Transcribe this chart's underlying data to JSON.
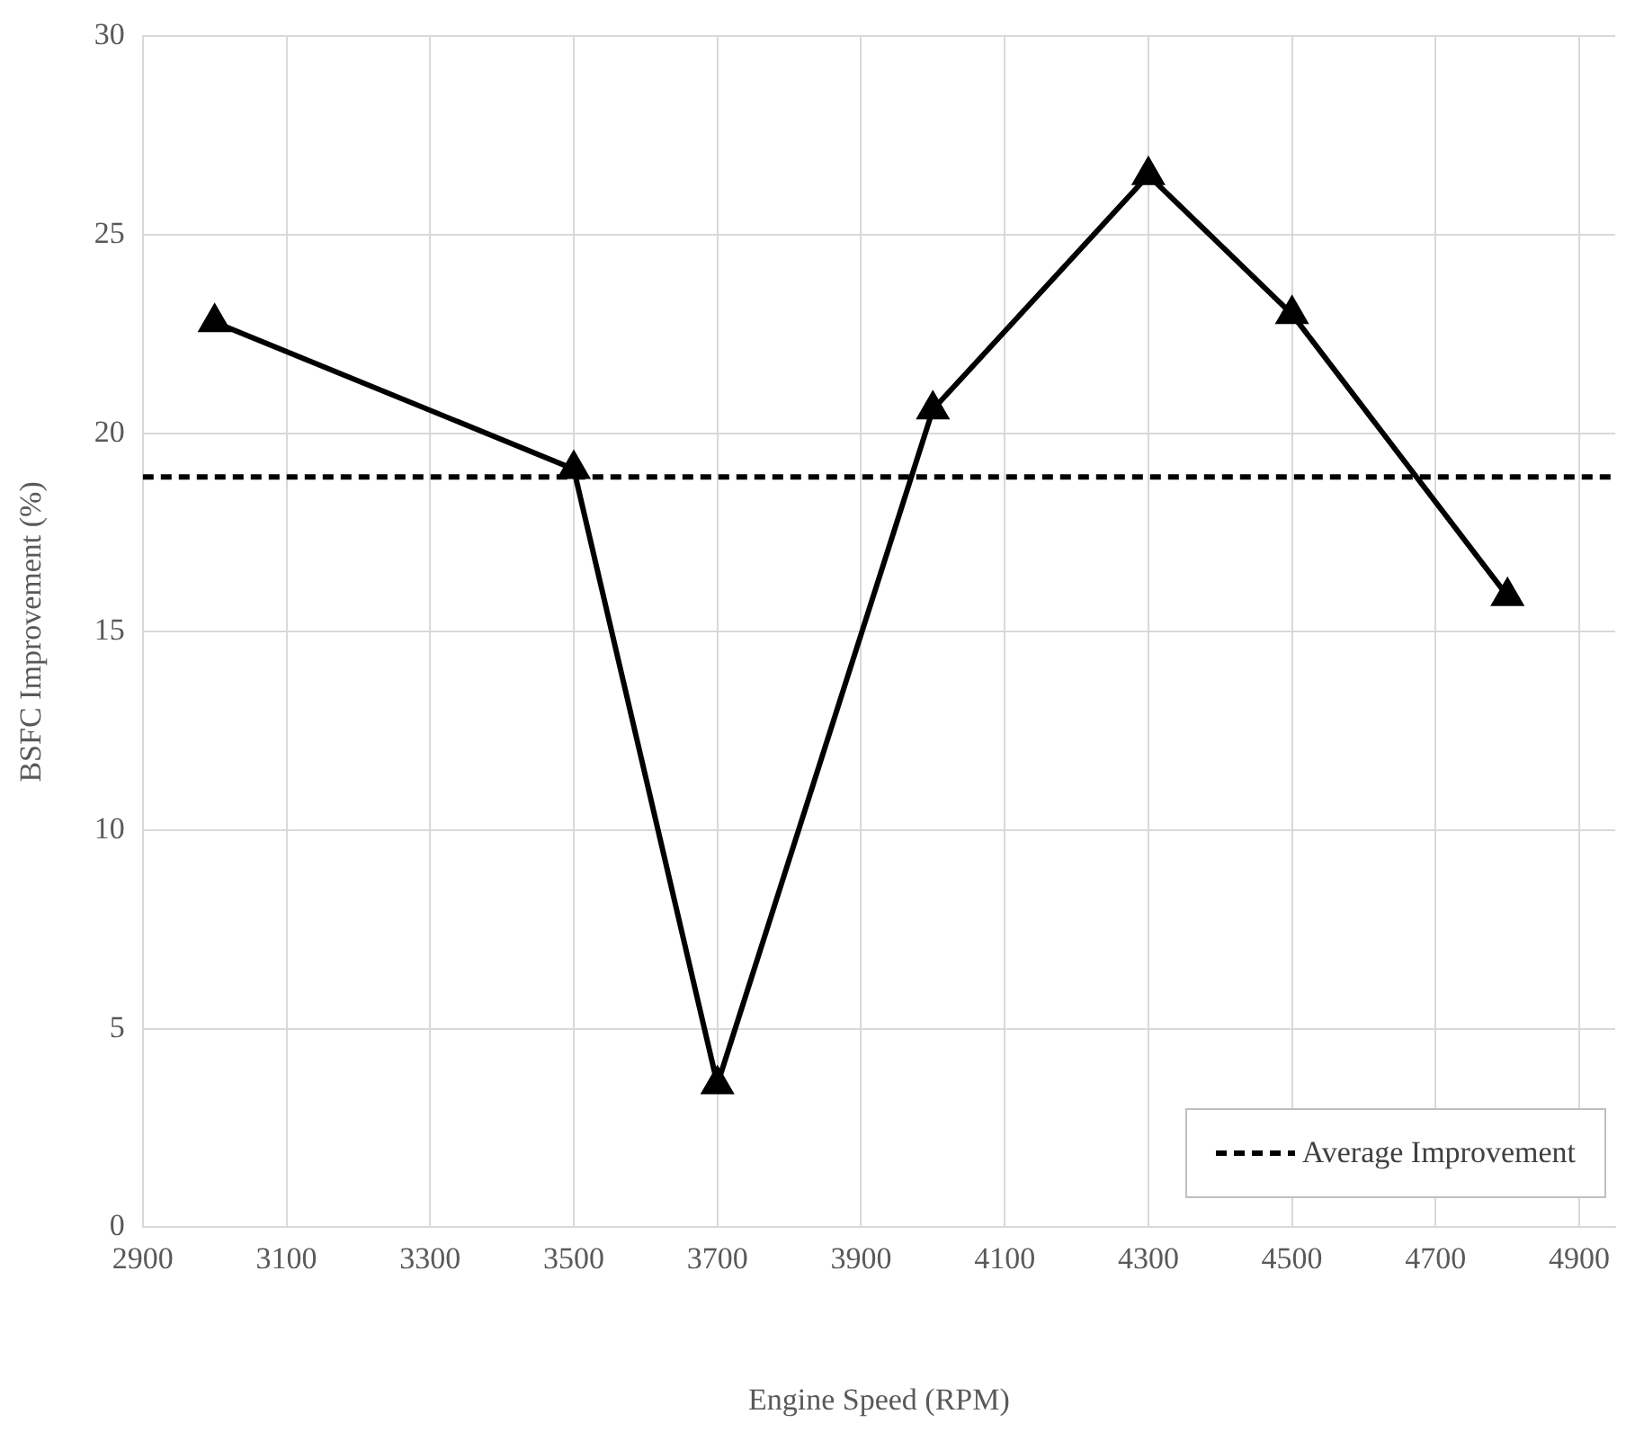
{
  "chart_data": {
    "type": "line",
    "xlabel": "Engine Speed (RPM)",
    "ylabel": "BSFC Improvement (%)",
    "x": [
      3000,
      3500,
      3700,
      4000,
      4300,
      4500,
      4800
    ],
    "series": [
      {
        "color": "#000000",
        "values": [
          22.8,
          19.1,
          3.6,
          20.6,
          26.5,
          23.0,
          15.9
        ]
      }
    ],
    "xlim": [
      2900,
      4950
    ],
    "xticks": [
      2900,
      3100,
      3300,
      3500,
      3700,
      3900,
      4100,
      4300,
      4500,
      4700,
      4900
    ],
    "ylim": [
      0,
      30
    ],
    "yticks": [
      0,
      5,
      10,
      15,
      20,
      25,
      30
    ],
    "ref_lines": [
      {
        "axis": "y",
        "value": 18.9,
        "label": "Average Improvement",
        "color": "#000000",
        "line_style": "dashed"
      }
    ],
    "grid": true,
    "legend": "bottom right",
    "marker": "triangle",
    "line_style": "solid"
  }
}
